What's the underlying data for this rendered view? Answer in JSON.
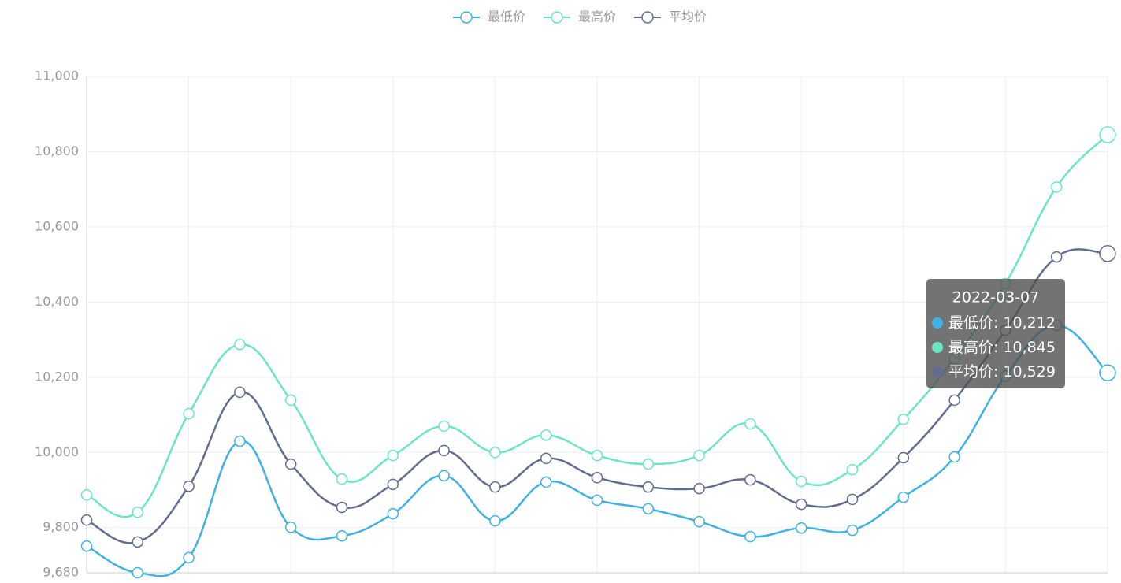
{
  "chart_data": {
    "type": "line",
    "categories": [
      null,
      null,
      null,
      null,
      null,
      null,
      null,
      null,
      null,
      null,
      null,
      null,
      null,
      null,
      null,
      null,
      null,
      null,
      null,
      null,
      "2022-03-07"
    ],
    "series": [
      {
        "name": "最低价",
        "color": "#3fb1e3",
        "values": [
          9751,
          9680,
          9720,
          10030,
          9801,
          9778,
          9837,
          9938,
          9818,
          9921,
          9873,
          9850,
          9816,
          9776,
          9799,
          9793,
          9881,
          9988,
          10203,
          10338,
          10212
        ]
      },
      {
        "name": "最高价",
        "color": "#6be6c1",
        "values": [
          9887,
          9841,
          10103,
          10287,
          10139,
          9929,
          9992,
          10070,
          10000,
          10046,
          9992,
          9969,
          9992,
          10076,
          9923,
          9954,
          10088,
          10250,
          10449,
          10706,
          10845
        ]
      },
      {
        "name": "平均价",
        "color": "#626c91",
        "values": [
          9820,
          9762,
          9910,
          10160,
          9969,
          9854,
          9915,
          10005,
          9908,
          9984,
          9933,
          9908,
          9904,
          9927,
          9862,
          9875,
          9986,
          10139,
          10325,
          10520,
          10529
        ]
      }
    ],
    "ylim": [
      9680,
      11000
    ],
    "yticks": [
      {
        "value": 9680,
        "label": "9,680"
      },
      {
        "value": 9800,
        "label": "9,800"
      },
      {
        "value": 10000,
        "label": "10,000"
      },
      {
        "value": 10200,
        "label": "10,200"
      },
      {
        "value": 10400,
        "label": "10,400"
      },
      {
        "value": 10600,
        "label": "10,600"
      },
      {
        "value": 10800,
        "label": "10,800"
      },
      {
        "value": 11000,
        "label": "11,000"
      }
    ],
    "grid": true,
    "smooth": true,
    "legend": "top",
    "tooltip": {
      "labels": [
        "10,212",
        "10,845",
        "10,529"
      ]
    }
  }
}
